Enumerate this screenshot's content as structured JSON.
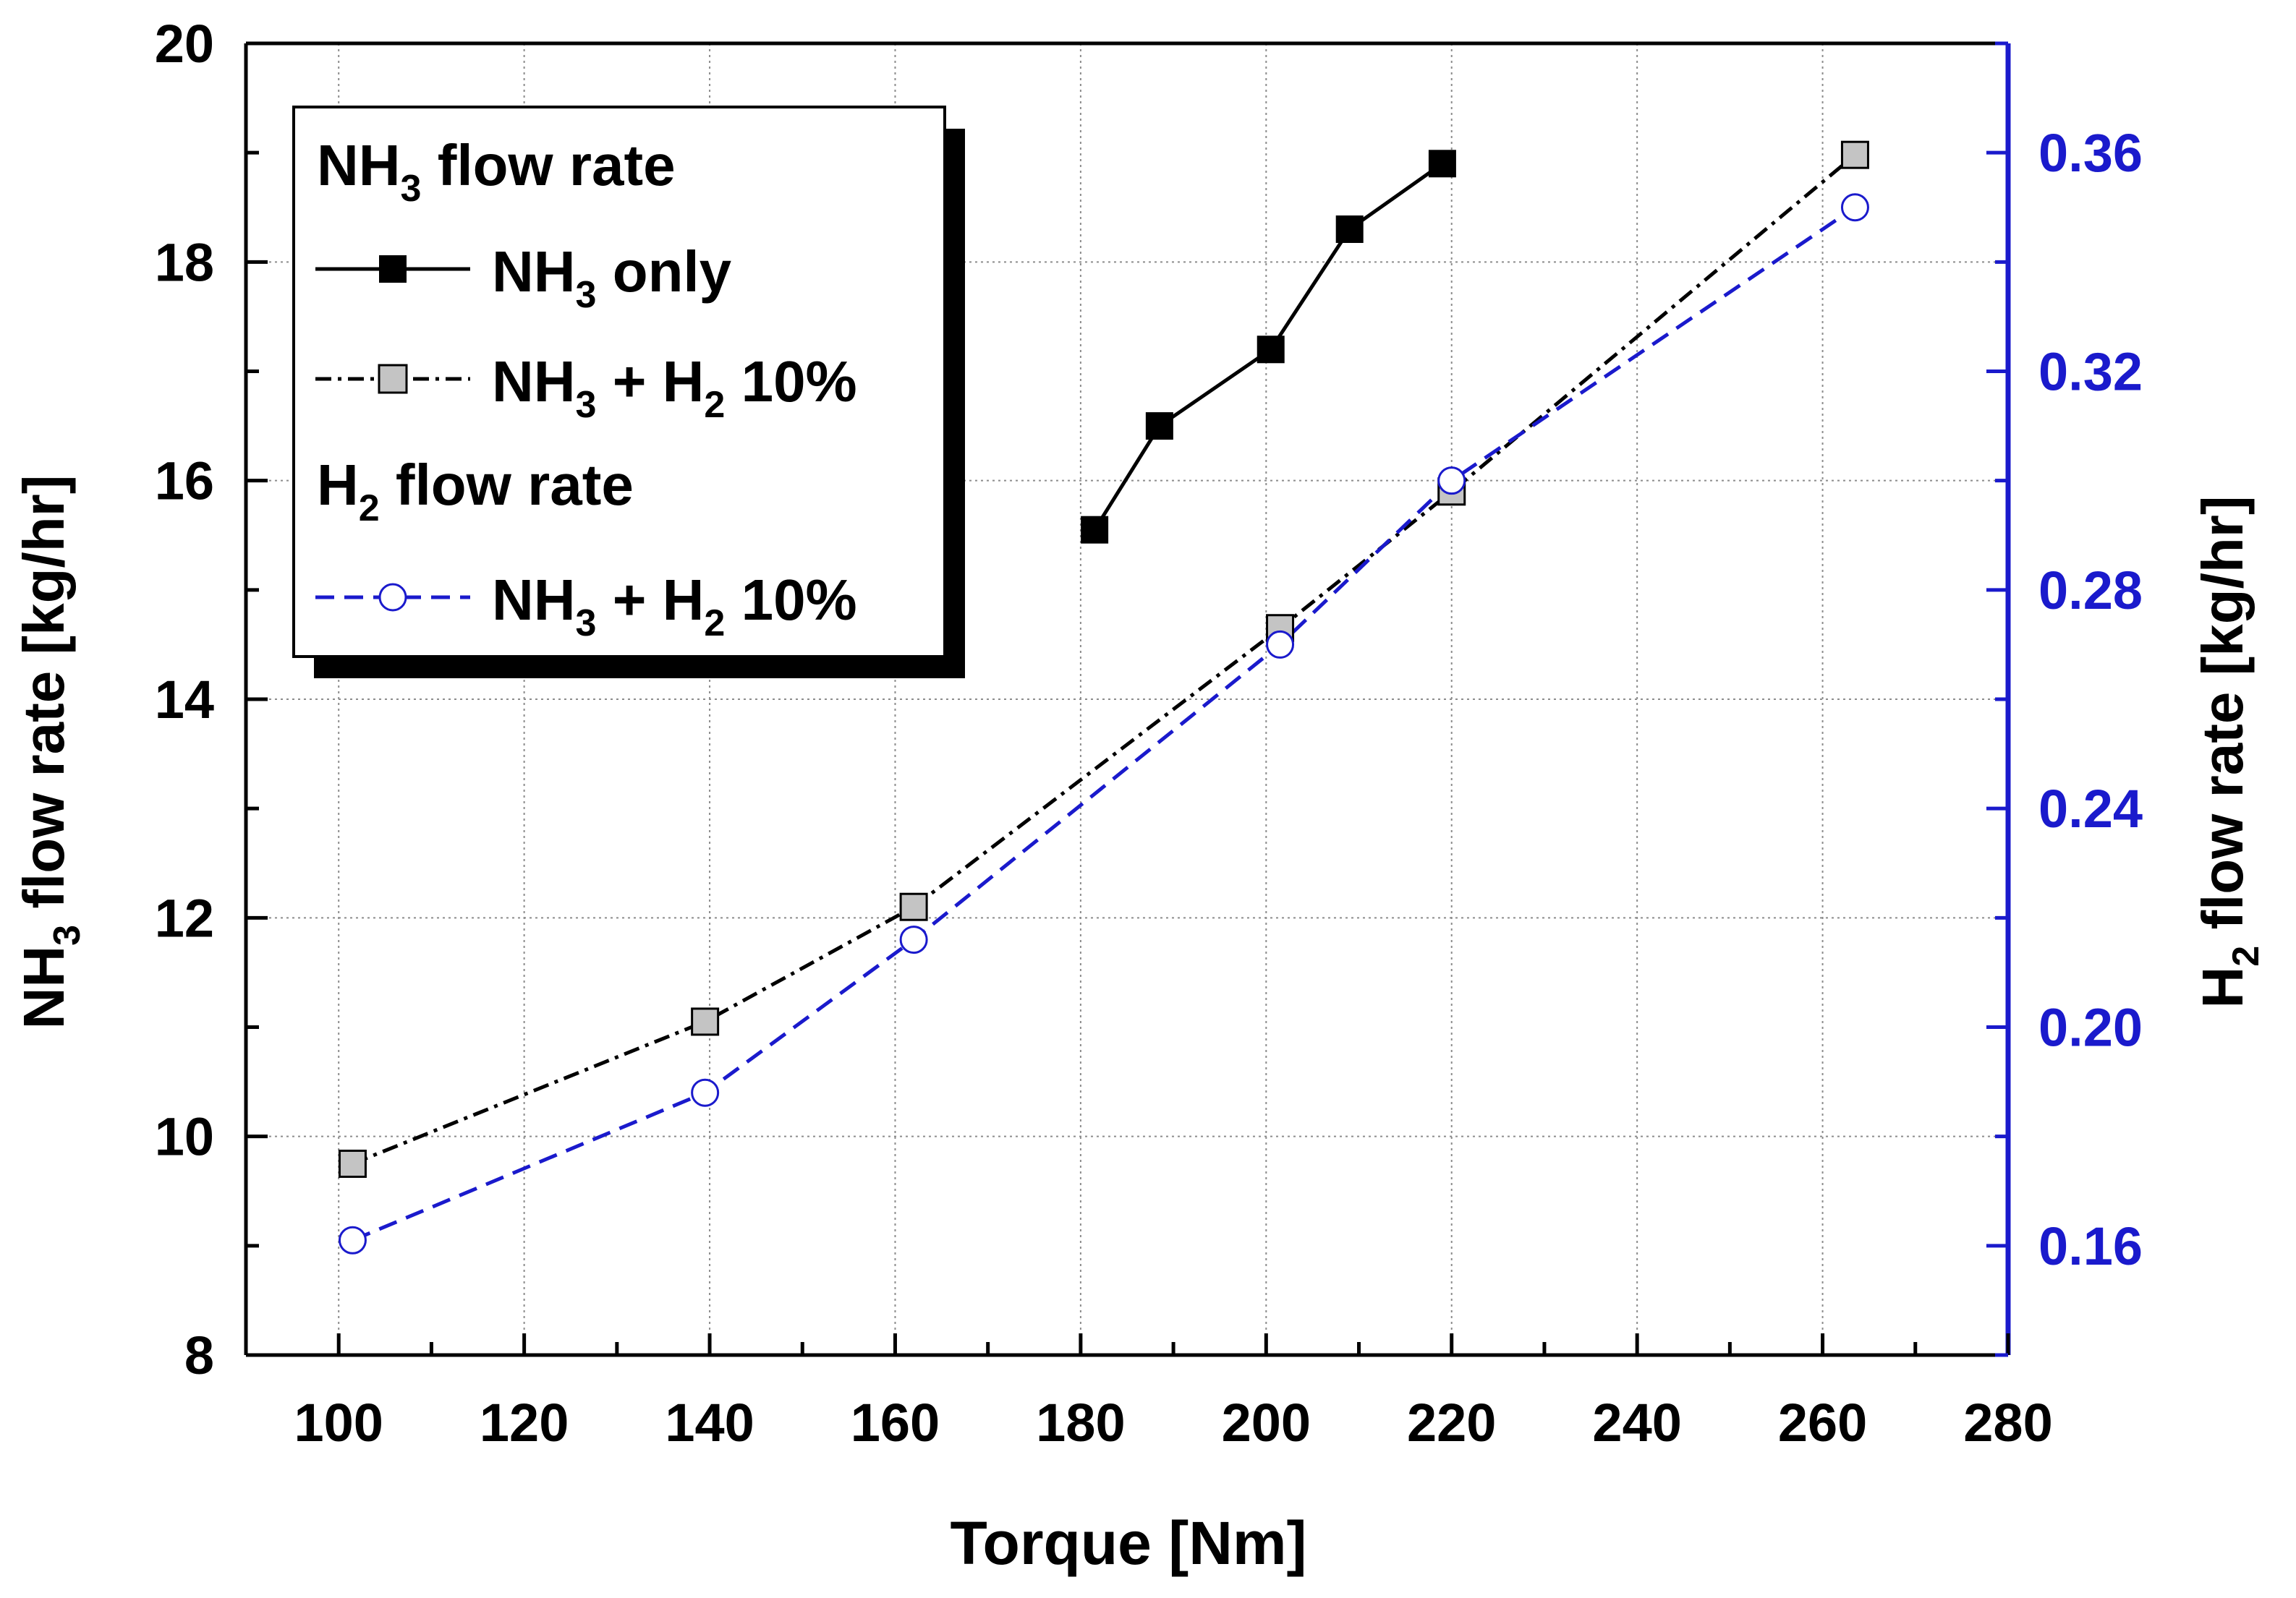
{
  "chart_data": {
    "type": "line",
    "title": "",
    "xlabel": "Torque [Nm]",
    "ylabel": {
      "main": "NH",
      "sub": "3",
      "rest": " flow rate [kg/hr]"
    },
    "y2label": {
      "main": "H",
      "sub": "2",
      "rest": " flow rate [kg/hr]"
    },
    "xlim": [
      90,
      280
    ],
    "ylim": [
      8,
      20
    ],
    "y2lim": [
      0.14,
      0.38
    ],
    "xticks": [
      "100",
      "120",
      "140",
      "160",
      "180",
      "200",
      "220",
      "240",
      "260",
      "280"
    ],
    "yticks": [
      "8",
      "10",
      "12",
      "14",
      "16",
      "18",
      "20"
    ],
    "y2ticks": [
      "0.16",
      "0.20",
      "0.24",
      "0.28",
      "0.32",
      "0.36"
    ],
    "grid": true,
    "legend_position": "top-left",
    "legend": {
      "group1": {
        "main": "NH",
        "sub": "3",
        "rest": " flow rate"
      },
      "entry1": {
        "main": "NH",
        "sub": "3",
        "rest": " only"
      },
      "entry2": {
        "main": "NH",
        "sub1": "3",
        "mid": " + H",
        "sub2": "2",
        "rest": " 10%"
      },
      "group2": {
        "main": "H",
        "sub": "2",
        "rest": " flow rate"
      },
      "entry3": {
        "main": "NH",
        "sub1": "3",
        "mid": " + H",
        "sub2": "2",
        "rest": " 10%"
      }
    },
    "series": [
      {
        "name": "NH3 only",
        "axis": "left",
        "style": "solid",
        "marker": "filled-square",
        "color": "#000000",
        "x": [
          181.5,
          188.5,
          200.5,
          209,
          219
        ],
        "y": [
          15.55,
          16.5,
          17.2,
          18.3,
          18.9
        ]
      },
      {
        "name": "NH3 + H2 10% (NH3 flow)",
        "axis": "left",
        "style": "dash-dot",
        "marker": "grey-square",
        "color": "#000000",
        "x": [
          101.5,
          139.5,
          162,
          201.5,
          220,
          263.5
        ],
        "y": [
          9.75,
          11.05,
          12.1,
          14.65,
          15.9,
          18.98
        ]
      },
      {
        "name": "NH3 + H2 10% (H2 flow)",
        "axis": "right",
        "style": "dashed",
        "marker": "open-circle",
        "color": "#1a1acc",
        "x": [
          101.5,
          139.5,
          162,
          201.5,
          220,
          263.5
        ],
        "y": [
          0.161,
          0.188,
          0.216,
          0.27,
          0.3,
          0.35
        ]
      }
    ]
  }
}
